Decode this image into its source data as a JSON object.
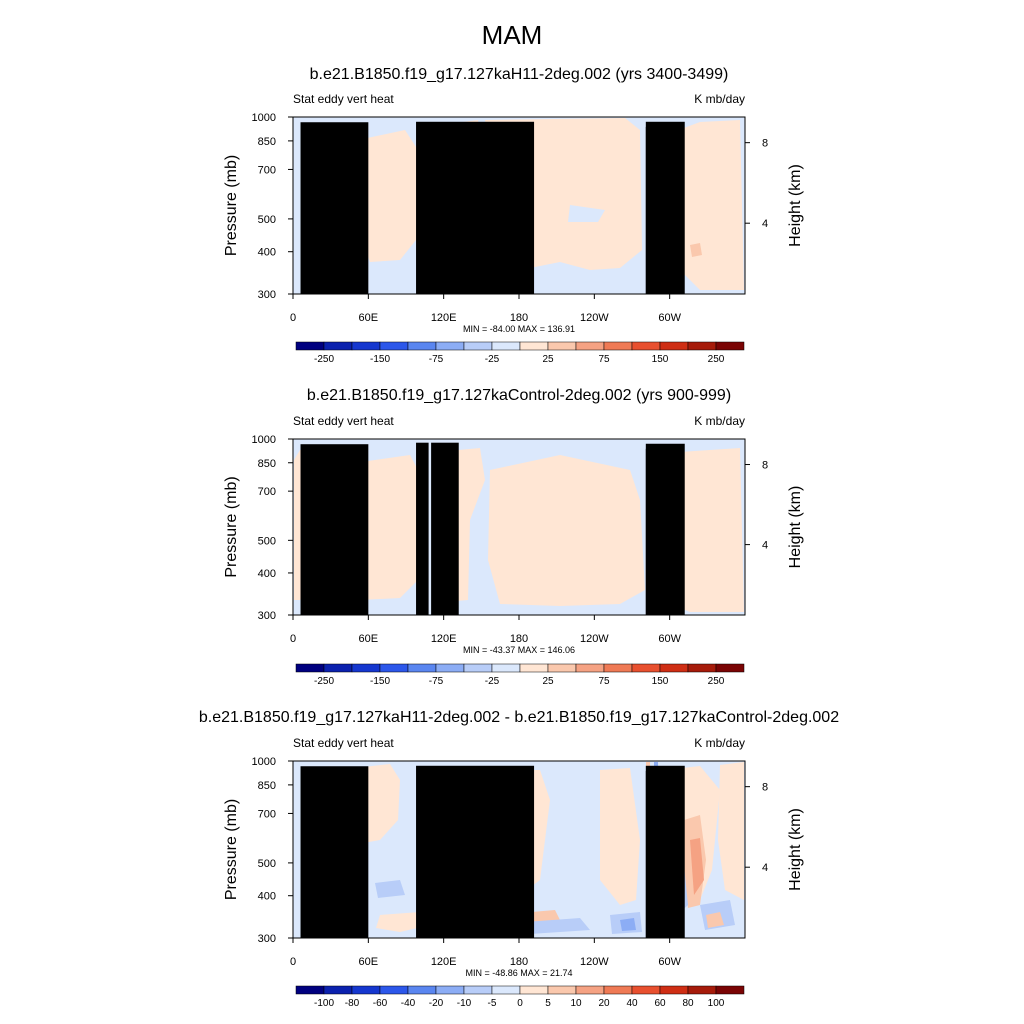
{
  "title": "MAM",
  "chart_data": [
    {
      "type": "heatmap",
      "title": "b.e21.B1850.f19_g17.127kaH11-2deg.002 (yrs 3400-3499)",
      "subtitle_left": "Stat eddy vert heat",
      "subtitle_right": "K mb/day",
      "ylabel": "Pressure (mb)",
      "y2label": "Height (km)",
      "x_ticks": [
        "0",
        "60E",
        "120E",
        "180",
        "120W",
        "60W"
      ],
      "x_tick_values": [
        0,
        60,
        120,
        180,
        240,
        300
      ],
      "xlim": [
        0,
        360
      ],
      "y_ticks": [
        "300",
        "400",
        "500",
        "700",
        "850",
        "1000"
      ],
      "y_tick_values": [
        300,
        400,
        500,
        700,
        850,
        1000
      ],
      "ylim": [
        300,
        1000
      ],
      "y2_ticks": [
        "8",
        "4"
      ],
      "y2_tick_values": [
        8,
        4
      ],
      "stats": "MIN = -84.00  MAX = 136.91",
      "min": -84.0,
      "max": 136.91,
      "background_level": 0,
      "colorbar": {
        "labels": [
          "-250",
          "-150",
          "-75",
          "-25",
          "25",
          "75",
          "150",
          "250"
        ],
        "colors": [
          "#00007f",
          "#0b21ae",
          "#1537cf",
          "#2c57ea",
          "#5a86f0",
          "#8cadf5",
          "#b8cdf8",
          "#dbe8fc",
          "#ffe6d4",
          "#fac8ad",
          "#f5a283",
          "#ef7a55",
          "#e8502f",
          "#cf2e14",
          "#a61b0a",
          "#7a0404"
        ]
      },
      "terrain": [
        {
          "lon": [
            6,
            60
          ],
          "top": 965
        },
        {
          "lon": [
            10,
            40
          ],
          "top": 950
        },
        {
          "lon": [
            24,
            48
          ],
          "top": 925
        },
        {
          "lon": [
            40,
            42
          ],
          "top": 905
        },
        {
          "lon": [
            98,
            192
          ],
          "top": 968
        },
        {
          "lon": [
            281,
            291
          ],
          "top": 935
        },
        {
          "lon": [
            281,
            312
          ],
          "top": 968
        }
      ]
    },
    {
      "type": "heatmap",
      "title": "b.e21.B1850.f19_g17.127kaControl-2deg.002 (yrs 900-999)",
      "subtitle_left": "Stat eddy vert heat",
      "subtitle_right": "K mb/day",
      "ylabel": "Pressure (mb)",
      "y2label": "Height (km)",
      "x_ticks": [
        "0",
        "60E",
        "120E",
        "180",
        "120W",
        "60W"
      ],
      "x_tick_values": [
        0,
        60,
        120,
        180,
        240,
        300
      ],
      "xlim": [
        0,
        360
      ],
      "y_ticks": [
        "300",
        "400",
        "500",
        "700",
        "850",
        "1000"
      ],
      "y_tick_values": [
        300,
        400,
        500,
        700,
        850,
        1000
      ],
      "ylim": [
        300,
        1000
      ],
      "y2_ticks": [
        "8",
        "4"
      ],
      "y2_tick_values": [
        8,
        4
      ],
      "stats": "MIN = -43.37  MAX = 146.06",
      "min": -43.37,
      "max": 146.06,
      "background_level": 0,
      "colorbar": {
        "labels": [
          "-250",
          "-150",
          "-75",
          "-25",
          "25",
          "75",
          "150",
          "250"
        ],
        "colors": [
          "#00007f",
          "#0b21ae",
          "#1537cf",
          "#2c57ea",
          "#5a86f0",
          "#8cadf5",
          "#b8cdf8",
          "#dbe8fc",
          "#ffe6d4",
          "#fac8ad",
          "#f5a283",
          "#ef7a55",
          "#e8502f",
          "#cf2e14",
          "#a61b0a",
          "#7a0404"
        ]
      },
      "terrain": [
        {
          "lon": [
            6,
            60
          ],
          "top": 965
        },
        {
          "lon": [
            10,
            40
          ],
          "top": 950
        },
        {
          "lon": [
            24,
            48
          ],
          "top": 925
        },
        {
          "lon": [
            40,
            42
          ],
          "top": 905
        },
        {
          "lon": [
            98,
            108
          ],
          "top": 975
        },
        {
          "lon": [
            110,
            132
          ],
          "top": 975
        },
        {
          "lon": [
            281,
            291
          ],
          "top": 935
        },
        {
          "lon": [
            281,
            312
          ],
          "top": 968
        }
      ]
    },
    {
      "type": "heatmap",
      "title": "b.e21.B1850.f19_g17.127kaH11-2deg.002 - b.e21.B1850.f19_g17.127kaControl-2deg.002",
      "subtitle_left": "Stat eddy vert heat",
      "subtitle_right": "K mb/day",
      "ylabel": "Pressure (mb)",
      "y2label": "Height (km)",
      "x_ticks": [
        "0",
        "60E",
        "120E",
        "180",
        "120W",
        "60W"
      ],
      "x_tick_values": [
        0,
        60,
        120,
        180,
        240,
        300
      ],
      "xlim": [
        0,
        360
      ],
      "y_ticks": [
        "300",
        "400",
        "500",
        "700",
        "850",
        "1000"
      ],
      "y_tick_values": [
        300,
        400,
        500,
        700,
        850,
        1000
      ],
      "ylim": [
        300,
        1000
      ],
      "y2_ticks": [
        "8",
        "4"
      ],
      "y2_tick_values": [
        8,
        4
      ],
      "stats": "MIN = -48.86  MAX =  21.74",
      "min": -48.86,
      "max": 21.74,
      "background_level": -5,
      "colorbar": {
        "labels": [
          "-100",
          "-80",
          "-60",
          "-40",
          "-20",
          "-10",
          "-5",
          "0",
          "5",
          "10",
          "20",
          "40",
          "60",
          "80",
          "100"
        ],
        "colors": [
          "#00007f",
          "#0b21ae",
          "#1537cf",
          "#2c57ea",
          "#5a86f0",
          "#8cadf5",
          "#b8cdf8",
          "#dbe8fc",
          "#ffe6d4",
          "#fac8ad",
          "#f5a283",
          "#ef7a55",
          "#e8502f",
          "#cf2e14",
          "#a61b0a",
          "#7a0404"
        ]
      },
      "terrain": [
        {
          "lon": [
            6,
            60
          ],
          "top": 965
        },
        {
          "lon": [
            10,
            40
          ],
          "top": 950
        },
        {
          "lon": [
            24,
            48
          ],
          "top": 925
        },
        {
          "lon": [
            40,
            42
          ],
          "top": 905
        },
        {
          "lon": [
            98,
            192
          ],
          "top": 968
        },
        {
          "lon": [
            281,
            291
          ],
          "top": 935
        },
        {
          "lon": [
            281,
            312
          ],
          "top": 968
        }
      ]
    }
  ]
}
